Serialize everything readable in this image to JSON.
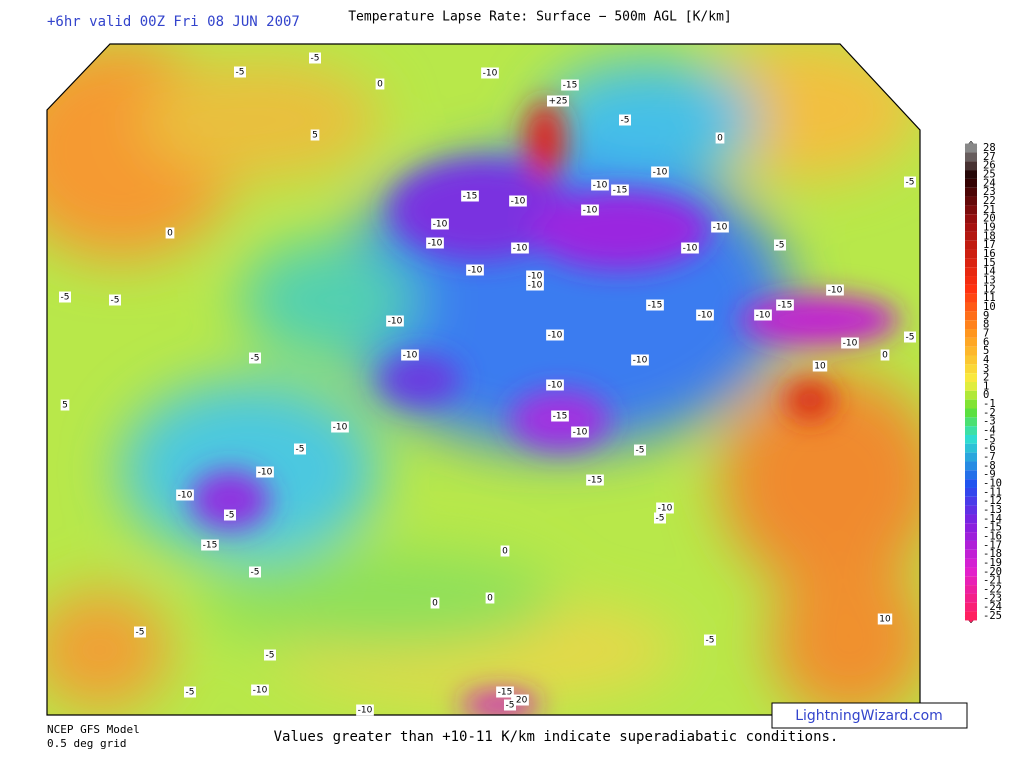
{
  "header": {
    "valid_time": "+6hr valid 00Z Fri 08 JUN 2007",
    "title": "Temperature Lapse Rate: Surface − 500m AGL  [K/km]"
  },
  "footer": {
    "model": "NCEP GFS Model",
    "grid": "0.5 deg grid",
    "note": "Values greater than +10-11 K/km indicate superadiabatic conditions.",
    "watermark": "LightningWizard.com"
  },
  "colorbar": {
    "ticks": [
      28,
      27,
      26,
      25,
      24,
      23,
      22,
      21,
      20,
      19,
      18,
      17,
      16,
      15,
      14,
      13,
      12,
      11,
      10,
      9,
      8,
      7,
      6,
      5,
      4,
      3,
      2,
      1,
      0,
      -1,
      -2,
      -3,
      -4,
      -5,
      -6,
      -7,
      -8,
      -9,
      -10,
      -11,
      -12,
      -13,
      -14,
      -15,
      -16,
      -17,
      -18,
      -19,
      -20,
      -21,
      -22,
      -23,
      -24,
      -25
    ]
  },
  "contour_labels": [
    -5,
    0,
    -10,
    -15,
    {
      "value": 25,
      "label": "+25"
    },
    -5,
    -10,
    -10,
    -15,
    -10,
    -15,
    -10,
    -10,
    -10,
    -10,
    -10,
    -10,
    -10,
    -10,
    -15,
    -10,
    -10,
    -15,
    -10,
    -10,
    -10,
    -10,
    -10,
    -15,
    -10,
    -5,
    -15,
    -10,
    -5,
    -10,
    -10,
    -10,
    -5,
    -10,
    -10,
    -5,
    -15,
    -5,
    -10,
    -5,
    0,
    0,
    0,
    -15,
    -20,
    -5,
    10,
    10,
    -5,
    -5,
    5,
    5,
    -5,
    0,
    0,
    -5,
    -5,
    -5,
    0,
    -5,
    -10,
    -10,
    -5,
    -5,
    -5
  ]
}
